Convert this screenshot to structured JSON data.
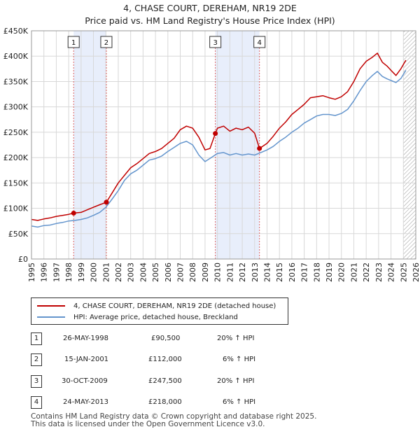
{
  "title_line1": "4, CHASE COURT, DEREHAM, NR19 2DE",
  "title_line2": "Price paid vs. HM Land Registry's House Price Index (HPI)",
  "legend": {
    "property": "4, CHASE COURT, DEREHAM, NR19 2DE (detached house)",
    "hpi": "HPI: Average price, detached house, Breckland"
  },
  "colors": {
    "property": "#c00000",
    "hpi": "#6495cd",
    "shade": "#e8eefb",
    "future_hatch": "#999999"
  },
  "transactions": [
    {
      "num": "1",
      "date": "26-MAY-1998",
      "price": "£90,500",
      "pct": "20% ↑ HPI"
    },
    {
      "num": "2",
      "date": "15-JAN-2001",
      "price": "£112,000",
      "pct": "6% ↑ HPI"
    },
    {
      "num": "3",
      "date": "30-OCT-2009",
      "price": "£247,500",
      "pct": "20% ↑ HPI"
    },
    {
      "num": "4",
      "date": "24-MAY-2013",
      "price": "£218,000",
      "pct": "6% ↑ HPI"
    }
  ],
  "footer_line1": "Contains HM Land Registry data © Crown copyright and database right 2025.",
  "footer_line2": "This data is licensed under the Open Government Licence v3.0.",
  "chart_data": {
    "type": "line",
    "ylabel": "",
    "xlabel": "",
    "xlim": [
      1995,
      2026
    ],
    "ylim": [
      0,
      450000
    ],
    "y_ticks": [
      0,
      50000,
      100000,
      150000,
      200000,
      250000,
      300000,
      350000,
      400000,
      450000
    ],
    "y_tick_labels": [
      "£0",
      "£50K",
      "£100K",
      "£150K",
      "£200K",
      "£250K",
      "£300K",
      "£350K",
      "£400K",
      "£450K"
    ],
    "x_ticks": [
      1995,
      1996,
      1997,
      1998,
      1999,
      2000,
      2001,
      2002,
      2003,
      2004,
      2005,
      2006,
      2007,
      2008,
      2009,
      2010,
      2011,
      2012,
      2013,
      2014,
      2015,
      2016,
      2017,
      2018,
      2019,
      2020,
      2021,
      2022,
      2023,
      2024,
      2025,
      2026
    ],
    "x_tick_labels": [
      "1995",
      "1996",
      "1997",
      "1998",
      "1999",
      "2000",
      "2001",
      "2002",
      "2003",
      "2004",
      "2005",
      "2006",
      "2007",
      "2008",
      "2009",
      "2010",
      "2011",
      "2012",
      "2013",
      "2014",
      "2015",
      "2016",
      "2017",
      "2018",
      "2019",
      "2020",
      "2021",
      "2022",
      "2023",
      "2024",
      "2025",
      "2026"
    ],
    "grid": true,
    "shaded_ranges": [
      [
        1998.4,
        2001.04
      ],
      [
        2009.83,
        2013.39
      ]
    ],
    "future_from": 2025.0,
    "sales": [
      {
        "label": "1",
        "x": 1998.4,
        "y": 90500
      },
      {
        "label": "2",
        "x": 2001.04,
        "y": 112000
      },
      {
        "label": "3",
        "x": 2009.83,
        "y": 247500
      },
      {
        "label": "4",
        "x": 2013.39,
        "y": 218000
      }
    ],
    "series": [
      {
        "name": "4, CHASE COURT, DEREHAM, NR19 2DE (detached house)",
        "color": "#c00000",
        "x": [
          1995.0,
          1995.5,
          1996.0,
          1996.5,
          1997.0,
          1997.5,
          1998.0,
          1998.4,
          1999.0,
          1999.5,
          2000.0,
          2000.5,
          2001.04,
          2001.5,
          2002.0,
          2002.5,
          2003.0,
          2003.5,
          2004.0,
          2004.5,
          2005.0,
          2005.5,
          2006.0,
          2006.5,
          2007.0,
          2007.5,
          2008.0,
          2008.5,
          2009.0,
          2009.4,
          2009.83,
          2010.0,
          2010.5,
          2011.0,
          2011.5,
          2012.0,
          2012.5,
          2013.0,
          2013.39,
          2014.0,
          2014.5,
          2015.0,
          2015.5,
          2016.0,
          2016.5,
          2017.0,
          2017.5,
          2018.0,
          2018.5,
          2019.0,
          2019.5,
          2020.0,
          2020.5,
          2021.0,
          2021.5,
          2022.0,
          2022.5,
          2022.9,
          2023.3,
          2023.7,
          2024.0,
          2024.4,
          2024.8,
          2025.2
        ],
        "y": [
          78000,
          76000,
          79000,
          81000,
          84000,
          86000,
          88000,
          90500,
          92000,
          97000,
          102000,
          107000,
          112000,
          130000,
          150000,
          165000,
          180000,
          188000,
          198000,
          208000,
          212000,
          218000,
          228000,
          238000,
          255000,
          262000,
          258000,
          240000,
          215000,
          218000,
          247500,
          258000,
          262000,
          252000,
          258000,
          255000,
          260000,
          248000,
          218000,
          228000,
          242000,
          258000,
          270000,
          285000,
          295000,
          305000,
          318000,
          320000,
          322000,
          318000,
          315000,
          320000,
          330000,
          350000,
          375000,
          390000,
          398000,
          406000,
          388000,
          380000,
          372000,
          362000,
          375000,
          392000
        ]
      },
      {
        "name": "HPI: Average price, detached house, Breckland",
        "color": "#6495cd",
        "x": [
          1995.0,
          1995.5,
          1996.0,
          1996.5,
          1997.0,
          1997.5,
          1998.0,
          1998.5,
          1999.0,
          1999.5,
          2000.0,
          2000.5,
          2001.0,
          2001.5,
          2002.0,
          2002.5,
          2003.0,
          2003.5,
          2004.0,
          2004.5,
          2005.0,
          2005.5,
          2006.0,
          2006.5,
          2007.0,
          2007.5,
          2008.0,
          2008.5,
          2009.0,
          2009.5,
          2010.0,
          2010.5,
          2011.0,
          2011.5,
          2012.0,
          2012.5,
          2013.0,
          2013.5,
          2014.0,
          2014.5,
          2015.0,
          2015.5,
          2016.0,
          2016.5,
          2017.0,
          2017.5,
          2018.0,
          2018.5,
          2019.0,
          2019.5,
          2020.0,
          2020.5,
          2021.0,
          2021.5,
          2022.0,
          2022.5,
          2022.9,
          2023.3,
          2023.7,
          2024.0,
          2024.4,
          2024.8,
          2025.2
        ],
        "y": [
          65000,
          63000,
          66000,
          67000,
          70000,
          72000,
          75000,
          76000,
          78000,
          81000,
          86000,
          92000,
          102000,
          118000,
          135000,
          155000,
          168000,
          175000,
          185000,
          195000,
          198000,
          203000,
          212000,
          220000,
          228000,
          232000,
          225000,
          205000,
          192000,
          200000,
          208000,
          210000,
          205000,
          208000,
          205000,
          207000,
          205000,
          210000,
          215000,
          222000,
          232000,
          240000,
          250000,
          258000,
          268000,
          275000,
          282000,
          285000,
          285000,
          283000,
          287000,
          295000,
          312000,
          332000,
          350000,
          362000,
          370000,
          360000,
          355000,
          352000,
          348000,
          356000,
          372000
        ]
      }
    ]
  }
}
